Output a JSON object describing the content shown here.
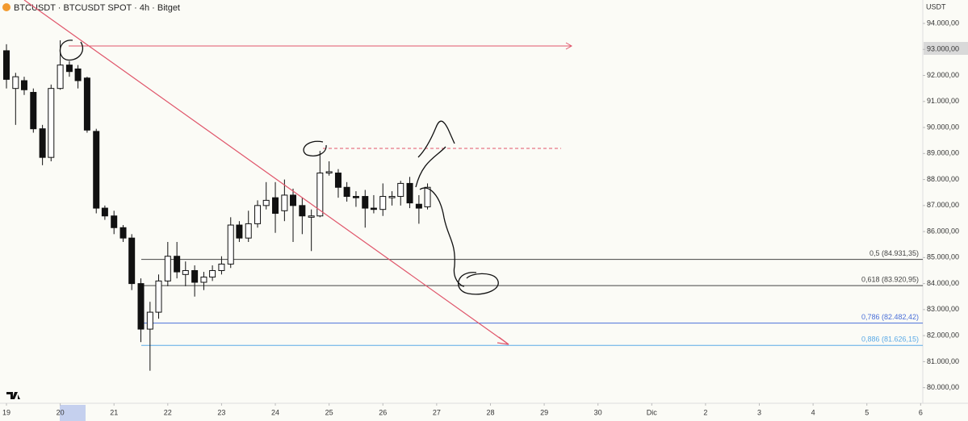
{
  "chart_data": {
    "type": "candlestick",
    "title": "BTCUSDT · BTCUSDT SPOT · 4h · Bitget",
    "y_axis_label": "USDT",
    "up_color": "#ffffff",
    "down_color": "#111111",
    "x": [
      19,
      19.17,
      19.33,
      19.5,
      19.67,
      19.83,
      20,
      20.17,
      20.33,
      20.5,
      20.67,
      20.83,
      21,
      21.17,
      21.33,
      21.5,
      21.67,
      21.83,
      22,
      22.17,
      22.33,
      22.5,
      22.67,
      22.83,
      23,
      23.17,
      23.33,
      23.5,
      23.67,
      23.83,
      24,
      24.17,
      24.33,
      24.5,
      24.67,
      24.83,
      25,
      25.17,
      25.33,
      25.5,
      25.67,
      25.83,
      26,
      26.17,
      26.33,
      26.5,
      26.67,
      26.83
    ],
    "open": [
      92950,
      91500,
      91800,
      91350,
      89950,
      88850,
      91500,
      92400,
      92250,
      91900,
      89850,
      86900,
      86600,
      86150,
      85750,
      84000,
      82250,
      82900,
      84100,
      85050,
      84350,
      84500,
      84050,
      84250,
      84500,
      84750,
      86250,
      85750,
      86300,
      87000,
      87300,
      86800,
      87400,
      87000,
      86550,
      86600,
      88250,
      88250,
      87700,
      87350,
      87350,
      86900,
      86850,
      87300,
      87350,
      87850,
      87050,
      86950
    ],
    "high": [
      93200,
      92100,
      91950,
      91500,
      90100,
      91650,
      93350,
      92550,
      92400,
      91950,
      89950,
      87000,
      86800,
      86250,
      85900,
      84200,
      83300,
      84350,
      85600,
      85600,
      84850,
      84700,
      84450,
      84700,
      85050,
      86550,
      86400,
      86800,
      87200,
      87900,
      87900,
      88000,
      87650,
      87300,
      86850,
      89100,
      88700,
      88400,
      87900,
      87550,
      87600,
      87400,
      87850,
      87550,
      87950,
      88100,
      87400,
      87850
    ],
    "low": [
      91500,
      90100,
      91250,
      89800,
      88550,
      88700,
      91450,
      91950,
      91500,
      89800,
      86700,
      86450,
      85900,
      85600,
      83750,
      81750,
      80650,
      82650,
      83900,
      84200,
      83900,
      83500,
      83750,
      84100,
      84350,
      84600,
      85600,
      85600,
      86150,
      86850,
      85950,
      86400,
      85600,
      85900,
      85250,
      86550,
      88150,
      87300,
      87150,
      86950,
      86150,
      86700,
      86600,
      87000,
      87000,
      86900,
      86300,
      86850
    ],
    "close": [
      91850,
      91950,
      91450,
      89950,
      88850,
      91500,
      92400,
      92150,
      91800,
      89900,
      86900,
      86600,
      86150,
      85750,
      84000,
      82250,
      82900,
      84100,
      85050,
      84450,
      84500,
      84050,
      84250,
      84500,
      84750,
      86250,
      85750,
      86300,
      87000,
      87200,
      86700,
      87400,
      87000,
      86600,
      86600,
      88250,
      88300,
      87700,
      87350,
      87300,
      86900,
      86850,
      87350,
      87350,
      87850,
      87100,
      86900,
      87700
    ],
    "xlim": [
      18.88,
      36.04
    ],
    "xticks": [
      19,
      {
        "value": 20,
        "label": "20"
      },
      21,
      22,
      23,
      24,
      25,
      26,
      27,
      28,
      29,
      30,
      {
        "value": 31,
        "label": "Dic"
      },
      {
        "value": 32,
        "label": "2"
      },
      {
        "value": 33,
        "label": "3"
      },
      {
        "value": 34,
        "label": "4"
      },
      {
        "value": 35,
        "label": "5"
      },
      {
        "value": 36,
        "label": "6"
      }
    ],
    "ylim": [
      79400,
      94900
    ],
    "yticks": [
      {
        "value": 80000,
        "label": "80.000,00"
      },
      {
        "value": 81000,
        "label": "81.000,00"
      },
      {
        "value": 82000,
        "label": "82.000,00"
      },
      {
        "value": 83000,
        "label": "83.000,00"
      },
      {
        "value": 84000,
        "label": "84.000,00"
      },
      {
        "value": 85000,
        "label": "85.000,00"
      },
      {
        "value": 86000,
        "label": "86.000,00"
      },
      {
        "value": 87000,
        "label": "87.000,00"
      },
      {
        "value": 88000,
        "label": "88.000,00"
      },
      {
        "value": 89000,
        "label": "89.000,00"
      },
      {
        "value": 90000,
        "label": "90.000,00"
      },
      {
        "value": 91000,
        "label": "91.000,00"
      },
      {
        "value": 92000,
        "label": "92.000,00"
      },
      {
        "value": 93000,
        "label": "93.000,00"
      },
      {
        "value": 94000,
        "label": "94.000,00"
      }
    ],
    "annotations": [
      {
        "label": "0,5 (84.931,35)",
        "value": 84931.35,
        "color": "#444444"
      },
      {
        "label": "0,618 (83.920,95)",
        "value": 83920.95,
        "color": "#444444"
      },
      {
        "label": "0,786 (82.482,42)",
        "value": 82482.42,
        "color": "#4a6fd8"
      },
      {
        "label": "0,886 (81.626,15)",
        "value": 81626.15,
        "color": "#5aa9e6"
      }
    ]
  }
}
